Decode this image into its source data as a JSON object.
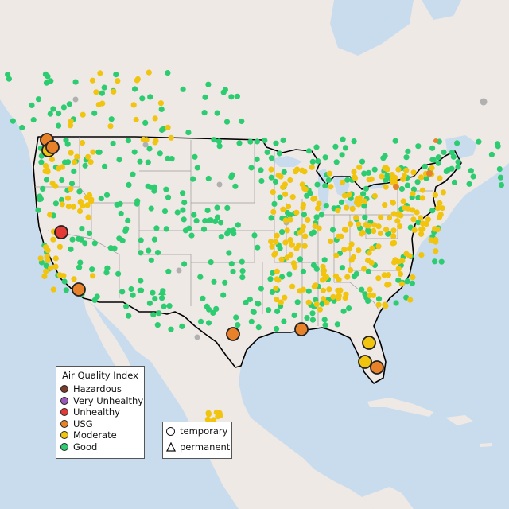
{
  "legend": {
    "title": "Air Quality Index",
    "categories": [
      {
        "label": "Hazardous",
        "color": "#7b3b2a"
      },
      {
        "label": "Very Unhealthy",
        "color": "#9b59b6"
      },
      {
        "label": "Unhealthy",
        "color": "#e53935"
      },
      {
        "label": "USG",
        "color": "#e8822a"
      },
      {
        "label": "Moderate",
        "color": "#f1c40f"
      },
      {
        "label": "Good",
        "color": "#2ecc71"
      }
    ]
  },
  "type_legend": {
    "temporary": "temporary",
    "permanent": "permanent"
  },
  "colors": {
    "ocean": "#c9dced",
    "land": "#efe9e6",
    "border": "#000000",
    "state_line": "#9a9a9a",
    "good": "#2ecc71",
    "moderate": "#f1c40f",
    "usg": "#e8822a",
    "unhealthy": "#e53935",
    "no_data": "#b0b0b0"
  }
}
